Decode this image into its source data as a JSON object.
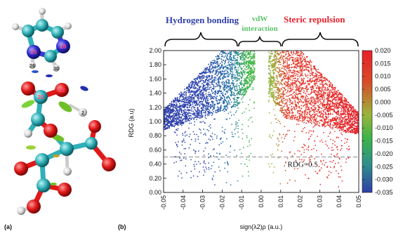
{
  "panel_a": {
    "label": "(a)",
    "atom_labels": [
      "25",
      "28",
      "26",
      "30",
      "20",
      "13",
      "2"
    ]
  },
  "panel_b": {
    "label": "(b)",
    "regions": {
      "hydrogen_bonding": "Hydrogen bonding",
      "vdw_line1": "vdW",
      "vdw_line2": "interaction",
      "steric": "Steric repulsion"
    },
    "threshold_label": "RDG=0.5",
    "colors": {
      "blue": "#2f3fa8",
      "green": "#3cb44a",
      "red": "#e8202a",
      "vdw_text": "#5cc36a"
    }
  },
  "chart_data": {
    "type": "scatter",
    "xlabel": "sign(λ2)ρ (a.u.)",
    "ylabel": "RDG (a.u)",
    "xlim": [
      -0.05,
      0.05
    ],
    "ylim": [
      0,
      2.0
    ],
    "x_ticks": [
      "-0.05",
      "-0.04",
      "-0.03",
      "-0.02",
      "-0.01",
      "0.00",
      "0.01",
      "0.02",
      "0.03",
      "0.04",
      "0.05"
    ],
    "y_ticks": [
      "0.00",
      "0.20",
      "0.40",
      "0.60",
      "0.80",
      "1.00",
      "1.20",
      "1.40",
      "1.60",
      "1.80",
      "2.00"
    ],
    "threshold_y": 0.5,
    "colorbar": {
      "range": [
        -0.035,
        0.02
      ],
      "ticks": [
        "0.020",
        "0.015",
        "0.010",
        "0.005",
        "0.000",
        "-0.005",
        "-0.010",
        "-0.015",
        "-0.020",
        "-0.025",
        "-0.030",
        "-0.035"
      ],
      "colors": [
        "#e8202a",
        "#3cb44a",
        "#2f3fa8"
      ]
    }
  }
}
